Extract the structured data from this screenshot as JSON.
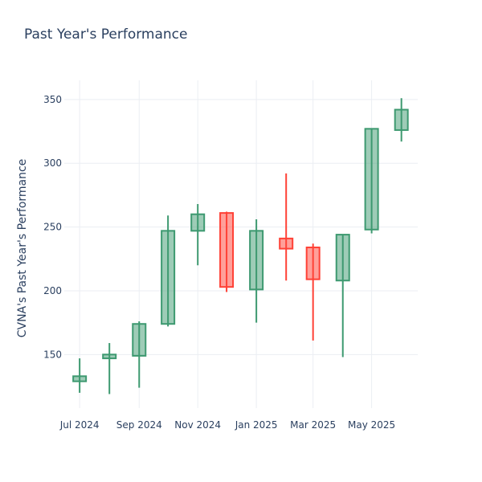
{
  "chart_data": {
    "type": "candlestick",
    "title": "Past Year's Performance",
    "ylabel": "CVNA's Past Year's Performance",
    "ylim": [
      108,
      365
    ],
    "yticks": [
      150,
      200,
      250,
      300,
      350
    ],
    "xticks": [
      {
        "label": "Jul 2024",
        "date": "2024-07-01"
      },
      {
        "label": "Sep 2024",
        "date": "2024-09-01"
      },
      {
        "label": "Nov 2024",
        "date": "2024-11-01"
      },
      {
        "label": "Jan 2025",
        "date": "2025-01-01"
      },
      {
        "label": "Mar 2025",
        "date": "2025-03-01"
      },
      {
        "label": "May 2025",
        "date": "2025-05-01"
      }
    ],
    "xlim": [
      "2024-06-15",
      "2025-06-18"
    ],
    "increasing_color": "#3d9970",
    "decreasing_color": "#ff4136",
    "candles": [
      {
        "date": "2024-07-01",
        "open": 129,
        "high": 147,
        "low": 120,
        "close": 133
      },
      {
        "date": "2024-08-01",
        "open": 147,
        "high": 159,
        "low": 119,
        "close": 150
      },
      {
        "date": "2024-09-01",
        "open": 149,
        "high": 176,
        "low": 124,
        "close": 174
      },
      {
        "date": "2024-10-01",
        "open": 174,
        "high": 259,
        "low": 172,
        "close": 247
      },
      {
        "date": "2024-11-01",
        "open": 247,
        "high": 268,
        "low": 220,
        "close": 260
      },
      {
        "date": "2024-12-01",
        "open": 261,
        "high": 262,
        "low": 199,
        "close": 203
      },
      {
        "date": "2025-01-01",
        "open": 201,
        "high": 256,
        "low": 175,
        "close": 247
      },
      {
        "date": "2025-02-01",
        "open": 241,
        "high": 292,
        "low": 208,
        "close": 233
      },
      {
        "date": "2025-03-01",
        "open": 234,
        "high": 237,
        "low": 161,
        "close": 209
      },
      {
        "date": "2025-04-01",
        "open": 208,
        "high": 244,
        "low": 148,
        "close": 244
      },
      {
        "date": "2025-05-01",
        "open": 248,
        "high": 327,
        "low": 245,
        "close": 327
      },
      {
        "date": "2025-06-01",
        "open": 326,
        "high": 351,
        "low": 317,
        "close": 342
      }
    ]
  }
}
